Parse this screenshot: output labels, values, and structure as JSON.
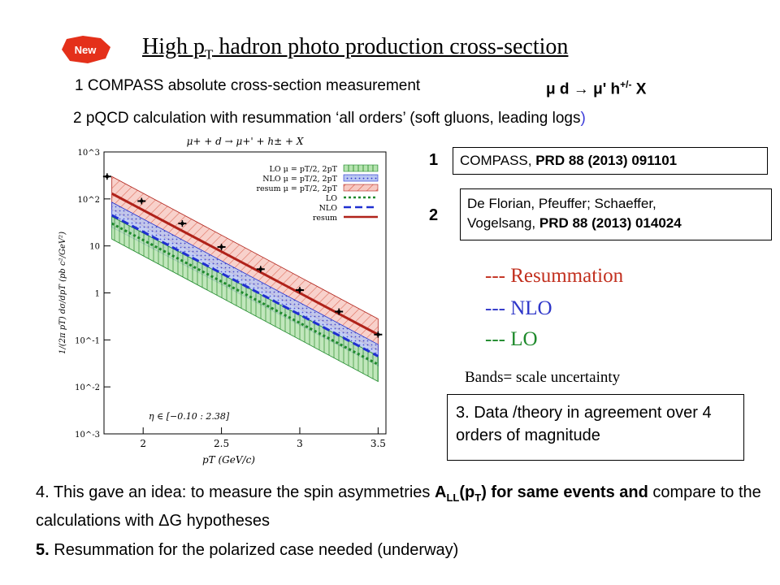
{
  "slide": {
    "badge": "New",
    "title_main": "High p",
    "title_sub": "T",
    "title_rest": " hadron photo production cross-section",
    "line1": "1  COMPASS absolute cross-section measurement",
    "reaction": "μ d → μ' h",
    "reaction_sup": "+/-",
    "reaction_tail": " X",
    "line2_main": "2  pQCD calculation with resummation ‘all orders’ (soft gluons, leading logs",
    "line2_paren": ")",
    "ref1_num": "1",
    "ref1_text": "COMPASS, ",
    "ref1_bold": "PRD 88 (2013) 091101",
    "ref2_num": "2",
    "ref2_line1": "De Florian, Pfeuffer; Schaeffer,",
    "ref2_line2": "Vogelsang, ",
    "ref2_bold": "PRD 88 (2013) 014024",
    "legend": [
      "--- Resummation",
      "--- NLO",
      "--- LO"
    ],
    "legend_colors": [
      "#c2301f",
      "#2e36c9",
      "#1f8a2c"
    ],
    "bands": "Bands= scale uncertainty",
    "point3": "3. Data /theory in agreement over 4 orders of magnitude",
    "point4_a": "4. This gave an idea: to measure  the spin asymmetries ",
    "point4_A": "A",
    "point4_LL": "LL",
    "point4_pT": "(p",
    "point4_T": "T",
    "point4_b": ") for same events and",
    "point4_c": " compare to the calculations with ΔG hypotheses",
    "point5_num": "5.",
    "point5_text": " Resummation for the polarized case needed (underway",
    "point5_paren": ")"
  },
  "chart_data": {
    "type": "scatter",
    "title": "μ+ + d → μ+' + h± + X",
    "xlabel": "pT (GeV/c)",
    "ylabel": "1/(2π pT) dσ/dpT (pb c²/GeV²)",
    "annotation": "η ∈ [−0.10 : 2.38]",
    "xlim": [
      1.75,
      3.55
    ],
    "ylim_log10": [
      -3,
      3
    ],
    "xticks": [
      "2",
      "2.5",
      "3",
      "3.5"
    ],
    "yticks": [
      "10^-3",
      "10^-2",
      "10^-1",
      "1",
      "10",
      "10^2",
      "10^3"
    ],
    "legend": [
      "LO  μ = pT/2, 2pT",
      "NLO  μ = pT/2, 2pT",
      "resum  μ = pT/2, 2pT",
      "LO",
      "NLO",
      "resum"
    ],
    "data_points": {
      "x": [
        1.77,
        1.99,
        2.25,
        2.5,
        2.75,
        3.0,
        3.25,
        3.5
      ],
      "y": [
        300,
        90,
        30,
        9.5,
        3.2,
        1.15,
        0.4,
        0.13
      ]
    },
    "series": [
      {
        "name": "resum",
        "x": [
          1.8,
          3.5
        ],
        "y": [
          130,
          0.13
        ],
        "band_low": [
          60,
          0.06
        ],
        "band_high": [
          300,
          0.28
        ]
      },
      {
        "name": "NLO",
        "x": [
          1.8,
          3.5
        ],
        "y": [
          45,
          0.045
        ],
        "band_low": [
          25,
          0.028
        ],
        "band_high": [
          85,
          0.08
        ]
      },
      {
        "name": "LO",
        "x": [
          1.8,
          3.5
        ],
        "y": [
          30,
          0.03
        ],
        "band_low": [
          14,
          0.013
        ],
        "band_high": [
          42,
          0.045
        ]
      }
    ]
  }
}
